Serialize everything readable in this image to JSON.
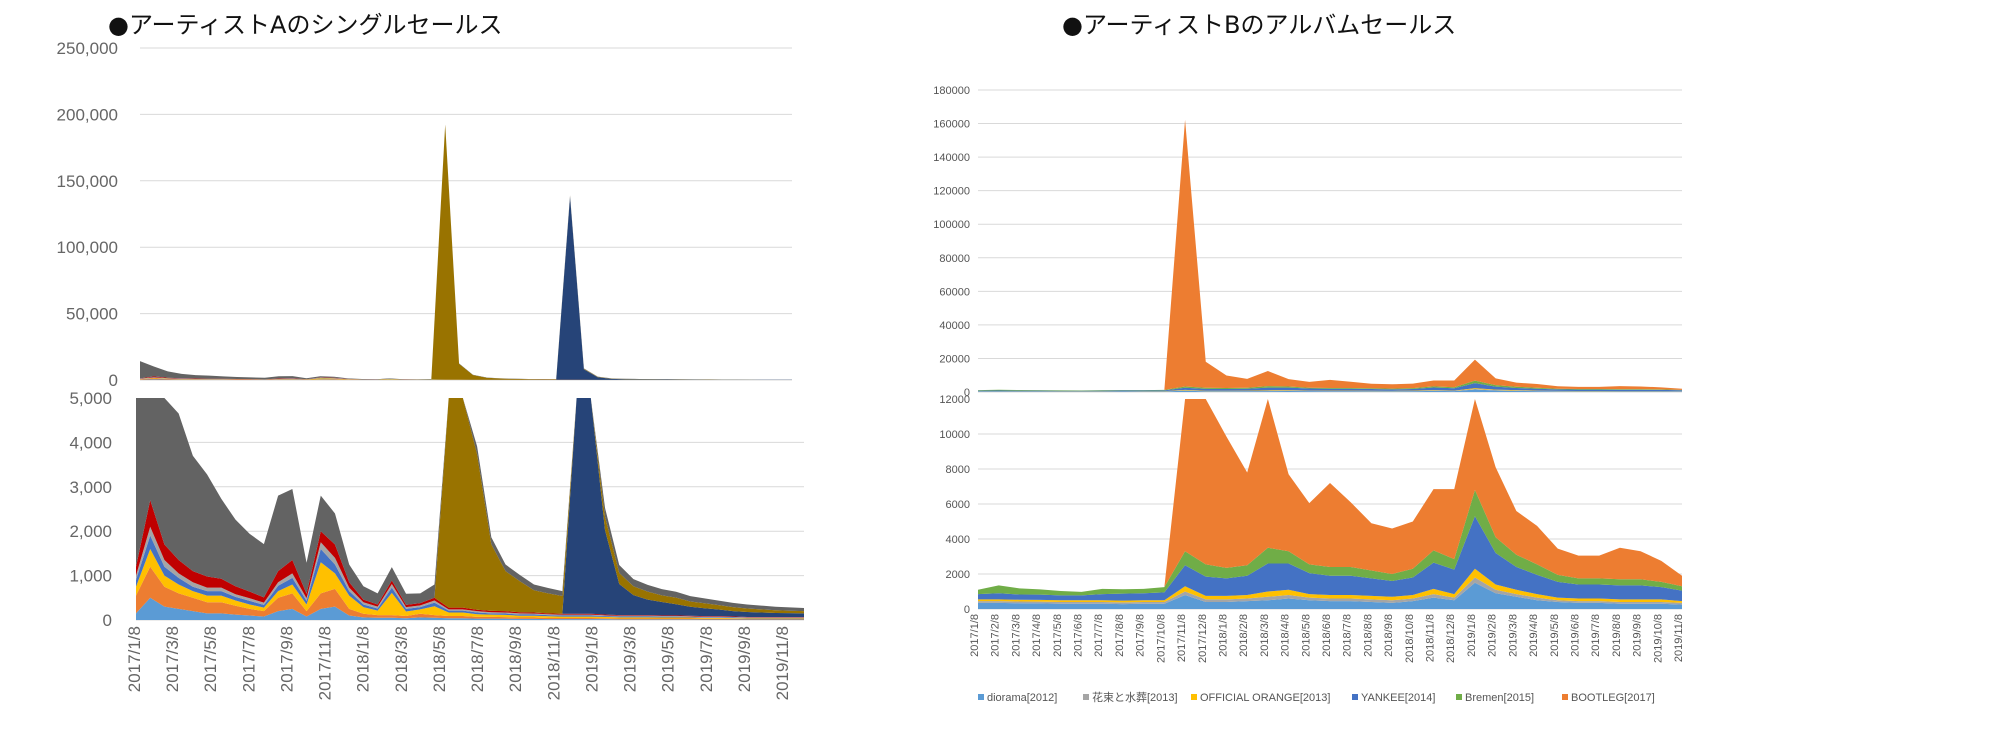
{
  "chart_data": [
    {
      "type": "area",
      "stacked": true,
      "title": "●アーティストAのシングルセールス",
      "layout": "two stacked panels with different y ranges (full view and zoomed view)",
      "top_panel": {
        "ylim": [
          0,
          250000
        ],
        "yticks": [
          "250,000",
          "200,000",
          "150,000",
          "100,000",
          "50,000",
          "0"
        ]
      },
      "bottom_panel": {
        "ylim": [
          0,
          5000
        ],
        "yticks": [
          "5,000",
          "4,000",
          "3,000",
          "2,000",
          "1,000",
          "0"
        ]
      },
      "x_labels": [
        "2017/1/8",
        "2017/3/8",
        "2017/5/8",
        "2017/7/8",
        "2017/9/8",
        "2017/11/8",
        "2018/1/8",
        "2018/3/8",
        "2018/5/8",
        "2018/7/8",
        "2018/9/8",
        "2018/11/8",
        "2019/1/8",
        "2019/3/8",
        "2019/5/8",
        "2019/7/8",
        "2019/9/8",
        "2019/11/8"
      ],
      "grid": true,
      "legend": "none",
      "series": [
        {
          "color": "#5b9bd5",
          "values": [
            150,
            500,
            300,
            250,
            200,
            150,
            150,
            120,
            100,
            80,
            200,
            250,
            80,
            250,
            300,
            100,
            60,
            50,
            50,
            40,
            60,
            50,
            40,
            40,
            30,
            30,
            30,
            25,
            25,
            20,
            20,
            20,
            20,
            20,
            15,
            15,
            15,
            15,
            15,
            15,
            12,
            12,
            12,
            10,
            10,
            10,
            10,
            10
          ]
        },
        {
          "color": "#ed7d31",
          "values": [
            400,
            700,
            450,
            350,
            300,
            250,
            250,
            200,
            150,
            120,
            300,
            350,
            120,
            350,
            400,
            150,
            80,
            60,
            60,
            50,
            80,
            60,
            50,
            50,
            40,
            40,
            35,
            30,
            30,
            25,
            25,
            25,
            25,
            20,
            20,
            20,
            20,
            20,
            20,
            20,
            15,
            15,
            15,
            12,
            12,
            12,
            12,
            12
          ]
        },
        {
          "color": "#ffc000",
          "values": [
            200,
            400,
            250,
            200,
            150,
            150,
            150,
            120,
            100,
            80,
            150,
            200,
            150,
            700,
            350,
            300,
            150,
            100,
            500,
            100,
            100,
            200,
            80,
            80,
            60,
            50,
            50,
            40,
            40,
            40,
            30,
            30,
            30,
            30,
            25,
            25,
            25,
            20,
            20,
            20,
            20,
            20,
            15,
            15,
            15,
            15,
            15,
            15
          ]
        },
        {
          "color": "#4472c4",
          "values": [
            150,
            300,
            200,
            150,
            100,
            100,
            100,
            80,
            80,
            60,
            120,
            150,
            80,
            300,
            200,
            100,
            60,
            50,
            120,
            60,
            50,
            80,
            40,
            40,
            40,
            30,
            30,
            30,
            30,
            25,
            25,
            25,
            25,
            20,
            20,
            20,
            20,
            20,
            20,
            15,
            15,
            15,
            15,
            12,
            12,
            12,
            12,
            12
          ]
        },
        {
          "color": "#a5a5a5",
          "values": [
            100,
            200,
            150,
            100,
            100,
            80,
            80,
            60,
            60,
            50,
            80,
            100,
            60,
            150,
            150,
            80,
            50,
            40,
            80,
            40,
            40,
            50,
            30,
            30,
            30,
            25,
            25,
            25,
            20,
            20,
            20,
            20,
            20,
            15,
            15,
            15,
            15,
            15,
            15,
            12,
            12,
            12,
            12,
            10,
            10,
            10,
            10,
            10
          ]
        },
        {
          "color": "#c00000",
          "values": [
            200,
            600,
            350,
            300,
            250,
            250,
            200,
            180,
            150,
            120,
            250,
            300,
            100,
            250,
            300,
            120,
            60,
            50,
            80,
            50,
            50,
            60,
            40,
            40,
            30,
            30,
            30,
            25,
            25,
            20,
            20,
            20,
            20,
            20,
            15,
            15,
            15,
            15,
            15,
            15,
            12,
            12,
            12,
            10,
            10,
            10,
            10,
            10
          ]
        },
        {
          "color": "#264478",
          "values": [
            0,
            0,
            0,
            0,
            0,
            0,
            0,
            0,
            0,
            0,
            0,
            0,
            0,
            0,
            0,
            0,
            0,
            0,
            0,
            0,
            0,
            0,
            0,
            0,
            0,
            0,
            0,
            0,
            0,
            0,
            0,
            138000,
            8000,
            1900,
            700,
            450,
            350,
            300,
            250,
            200,
            180,
            150,
            120,
            110,
            100,
            90,
            85,
            80
          ]
        },
        {
          "color": "#997300",
          "values": [
            0,
            0,
            0,
            0,
            0,
            0,
            0,
            0,
            0,
            0,
            0,
            0,
            0,
            0,
            0,
            0,
            0,
            0,
            0,
            0,
            0,
            0,
            192000,
            12000,
            3500,
            1500,
            900,
            700,
            500,
            450,
            400,
            400,
            350,
            300,
            250,
            200,
            180,
            150,
            150,
            120,
            110,
            100,
            90,
            80,
            70,
            60,
            55,
            50
          ]
        },
        {
          "color": "#636363",
          "values": [
            13000,
            7500,
            4800,
            3300,
            2600,
            2300,
            1800,
            1500,
            1300,
            1200,
            1700,
            1600,
            700,
            800,
            700,
            400,
            300,
            250,
            300,
            250,
            220,
            300,
            250,
            200,
            180,
            160,
            150,
            140,
            130,
            120,
            110,
            500,
            300,
            200,
            180,
            160,
            150,
            140,
            130,
            120,
            110,
            100,
            95,
            90,
            85,
            80,
            75,
            70
          ]
        }
      ]
    },
    {
      "type": "area",
      "stacked": true,
      "title": "●アーティストBのアルバムセールス",
      "layout": "two stacked panels with different y ranges (full view and zoomed view)",
      "top_panel": {
        "ylim": [
          0,
          180000
        ],
        "yticks": [
          "180000",
          "160000",
          "140000",
          "120000",
          "100000",
          "80000",
          "60000",
          "40000",
          "20000",
          "0"
        ]
      },
      "bottom_panel": {
        "ylim": [
          0,
          12000
        ],
        "yticks": [
          "12000",
          "10000",
          "8000",
          "6000",
          "4000",
          "2000",
          "0"
        ]
      },
      "x_labels": [
        "2017/1/8",
        "2017/2/8",
        "2017/3/8",
        "2017/4/8",
        "2017/5/8",
        "2017/6/8",
        "2017/7/8",
        "2017/8/8",
        "2017/9/8",
        "2017/10/8",
        "2017/11/8",
        "2017/12/8",
        "2018/1/8",
        "2018/2/8",
        "2018/3/8",
        "2018/4/8",
        "2018/5/8",
        "2018/6/8",
        "2018/7/8",
        "2018/8/8",
        "2018/9/8",
        "2018/10/8",
        "2018/11/8",
        "2018/12/8",
        "2019/1/8",
        "2019/2/8",
        "2019/3/8",
        "2019/4/8",
        "2019/5/8",
        "2019/6/8",
        "2019/7/8",
        "2019/8/8",
        "2019/9/8",
        "2019/10/8",
        "2019/11/8"
      ],
      "grid": true,
      "legend": "bottom",
      "series": [
        {
          "name": "diorama[2012]",
          "color": "#5b9bd5",
          "values": [
            350,
            350,
            330,
            320,
            300,
            300,
            300,
            280,
            300,
            300,
            800,
            400,
            400,
            450,
            500,
            600,
            500,
            450,
            450,
            400,
            350,
            450,
            650,
            500,
            1500,
            900,
            700,
            500,
            400,
            350,
            350,
            300,
            300,
            300,
            250
          ]
        },
        {
          "name": "花束と水葬[2013]",
          "color": "#a5a5a5",
          "values": [
            100,
            100,
            100,
            100,
            100,
            100,
            100,
            100,
            100,
            100,
            200,
            150,
            150,
            150,
            200,
            200,
            150,
            150,
            150,
            150,
            150,
            150,
            200,
            150,
            300,
            200,
            150,
            150,
            100,
            100,
            100,
            100,
            100,
            100,
            100
          ]
        },
        {
          "name": "OFFICIAL ORANGE[2013]",
          "color": "#ffc000",
          "values": [
            100,
            100,
            100,
            100,
            100,
            100,
            100,
            100,
            100,
            100,
            300,
            200,
            200,
            200,
            300,
            300,
            200,
            200,
            200,
            200,
            200,
            200,
            300,
            200,
            500,
            300,
            250,
            200,
            150,
            150,
            150,
            150,
            150,
            150,
            100
          ]
        },
        {
          "name": "YANKEE[2014]",
          "color": "#4472c4",
          "values": [
            300,
            350,
            300,
            300,
            280,
            280,
            350,
            400,
            400,
            450,
            1200,
            1100,
            1000,
            1100,
            1600,
            1500,
            1200,
            1100,
            1100,
            1000,
            900,
            1000,
            1500,
            1400,
            3000,
            1800,
            1300,
            1100,
            900,
            800,
            800,
            800,
            800,
            700,
            600
          ]
        },
        {
          "name": "Bremen[2015]",
          "color": "#70ad47",
          "values": [
            250,
            450,
            350,
            300,
            250,
            200,
            300,
            250,
            250,
            300,
            800,
            700,
            600,
            600,
            900,
            700,
            500,
            500,
            500,
            450,
            400,
            500,
            700,
            600,
            1500,
            900,
            700,
            600,
            400,
            350,
            350,
            350,
            350,
            300,
            250
          ]
        },
        {
          "name": "BOOTLEG[2017]",
          "color": "#ed7d31",
          "values": [
            0,
            0,
            0,
            0,
            0,
            0,
            0,
            0,
            0,
            0,
            159000,
            15500,
            7500,
            5300,
            9000,
            4400,
            3500,
            4800,
            3700,
            2700,
            2600,
            2700,
            3500,
            4000,
            12500,
            4000,
            2500,
            2200,
            1500,
            1300,
            1300,
            1800,
            1600,
            1200,
            600
          ]
        }
      ]
    }
  ]
}
